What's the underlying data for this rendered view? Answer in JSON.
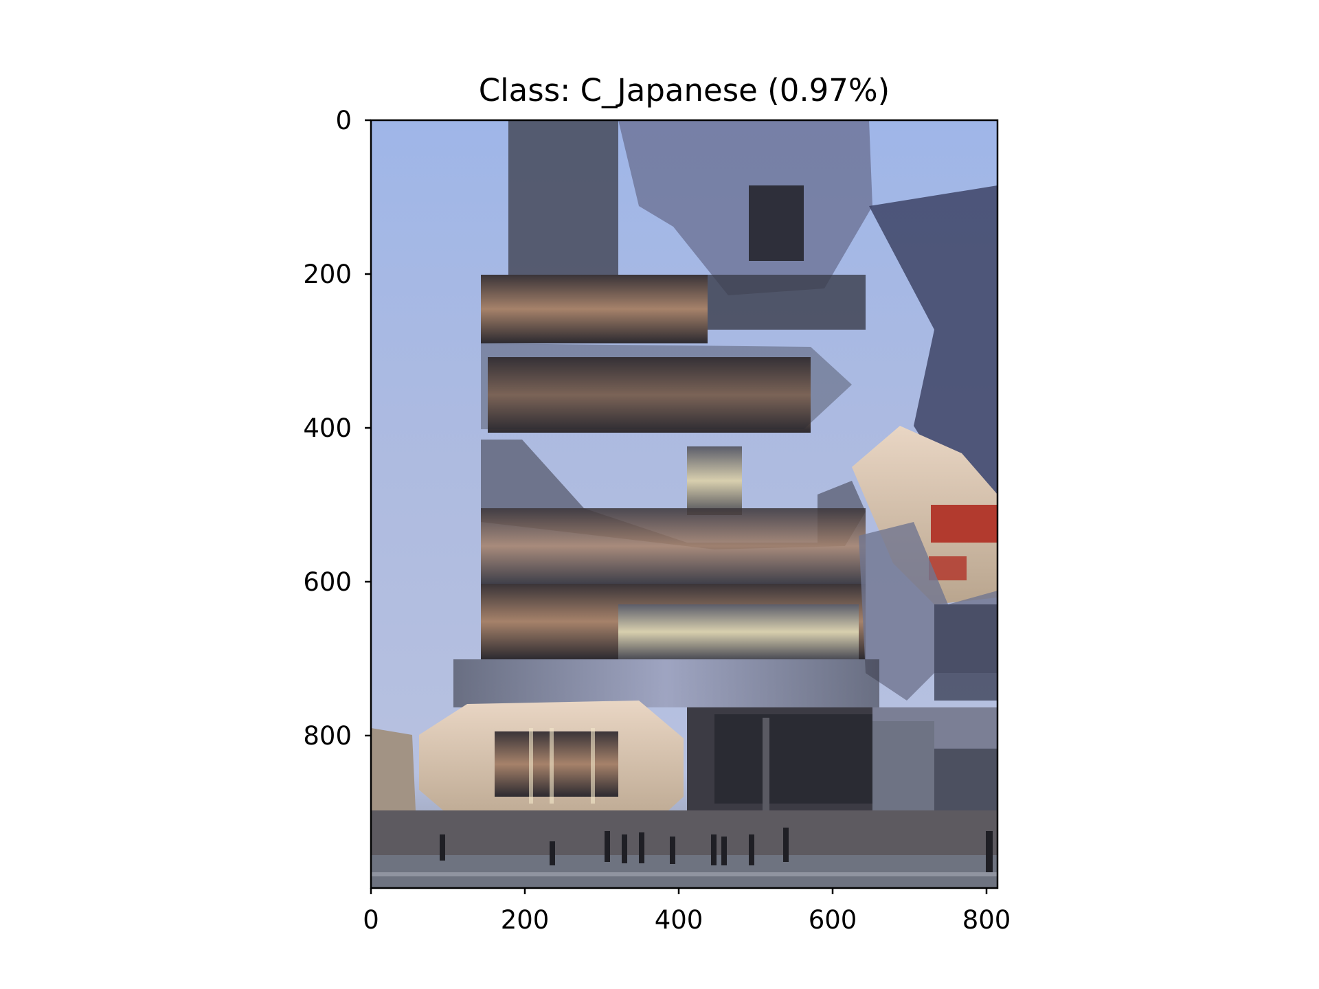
{
  "chart_data": {
    "type": "image",
    "title": "Class: C_Japanese (0.97%)",
    "xlabel": "",
    "ylabel": "",
    "xlim": [
      0,
      815
    ],
    "ylim": [
      1000,
      0
    ],
    "x_ticks": [
      0,
      200,
      400,
      600,
      800
    ],
    "y_ticks": [
      0,
      200,
      400,
      600,
      800
    ],
    "grid": false,
    "image": {
      "description_colors": {
        "sky_top": "#9fb7e6",
        "sky_mid": "#a9b9df",
        "sky_low": "#b4c0e0",
        "building_dark": "#2a2b33",
        "wood_warm": "#a27c62",
        "glass_light": "#d9d2b4",
        "street": "#6e7380",
        "sign_red": "#b23a2e"
      }
    }
  }
}
